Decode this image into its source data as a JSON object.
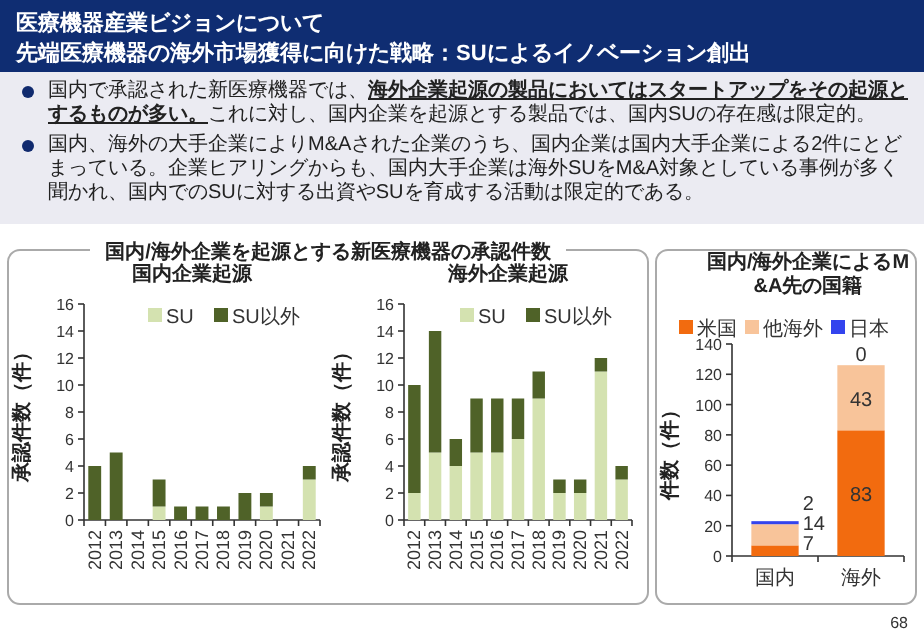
{
  "chart_data": [
    {
      "type": "other",
      "title": "医療機器産業ビジョンについて",
      "subtitle": "先端医療機器の海外市場獲得に向けた戦略：SUによるイノベーション創出",
      "annotations": [
        "国内で承認された新医療機器では、**海外企業起源の製品においてはスタートアップをその起源とするものが多い。**これに対し、国内企業を起源とする製品では、国内SUの存在感は限定的。",
        "国内、海外の大手企業によりM&Aされた企業のうち、国内企業は国内大手企業による2件にとどまっている。企業ヒアリングからも、国内大手企業は海外SUをM&A対象としている事例が多く聞かれ、国内でのSUに対する出資やSUを育成する活動は限定的である。",
        "68"
      ]
    },
    {
      "type": "bar",
      "stacked": true,
      "title": "国内企業起源",
      "annotations": [
        "国内/海外企業を起源とする新医療機器の承認件数"
      ],
      "ylabel": "承認件数（件）",
      "categories": [
        "2012",
        "2013",
        "2014",
        "2015",
        "2016",
        "2017",
        "2018",
        "2019",
        "2020",
        "2021",
        "2022"
      ],
      "ylim": [
        0,
        16
      ],
      "yticks": [
        0,
        2,
        4,
        6,
        8,
        10,
        12,
        14,
        16
      ],
      "legend": "top right",
      "series": [
        {
          "name": "SU",
          "color": "#d4e2b0",
          "values": [
            0,
            0,
            0,
            1,
            0,
            0,
            0,
            0,
            1,
            0,
            3
          ]
        },
        {
          "name": "SU以外",
          "color": "#4f6228",
          "values": [
            4,
            5,
            0,
            2,
            1,
            1,
            1,
            2,
            1,
            0,
            1
          ]
        }
      ]
    },
    {
      "type": "bar",
      "stacked": true,
      "title": "海外企業起源",
      "ylabel": "承認件数（件）",
      "categories": [
        "2012",
        "2013",
        "2014",
        "2015",
        "2016",
        "2017",
        "2018",
        "2019",
        "2020",
        "2021",
        "2022"
      ],
      "ylim": [
        0,
        16
      ],
      "yticks": [
        0,
        2,
        4,
        6,
        8,
        10,
        12,
        14,
        16
      ],
      "legend": "top right",
      "series": [
        {
          "name": "SU",
          "color": "#d4e2b0",
          "values": [
            2,
            5,
            4,
            5,
            5,
            6,
            9,
            2,
            2,
            11,
            3
          ]
        },
        {
          "name": "SU以外",
          "color": "#4f6228",
          "values": [
            8,
            9,
            2,
            4,
            4,
            3,
            2,
            1,
            1,
            1,
            1
          ]
        }
      ]
    },
    {
      "type": "bar",
      "stacked": true,
      "title": "国内/海外企業によるM&A先の国籍",
      "ylabel": "件数（件）",
      "categories": [
        "国内",
        "海外"
      ],
      "ylim": [
        0,
        140
      ],
      "yticks": [
        0,
        20,
        40,
        60,
        80,
        100,
        120,
        140
      ],
      "legend": "top",
      "data_labels": true,
      "series": [
        {
          "name": "米国",
          "color": "#f26b0f",
          "values": [
            7,
            83
          ]
        },
        {
          "name": "他海外",
          "color": "#f8c49a",
          "values": [
            14,
            43
          ]
        },
        {
          "name": "日本",
          "color": "#3344ee",
          "values": [
            2,
            0
          ]
        }
      ]
    }
  ]
}
